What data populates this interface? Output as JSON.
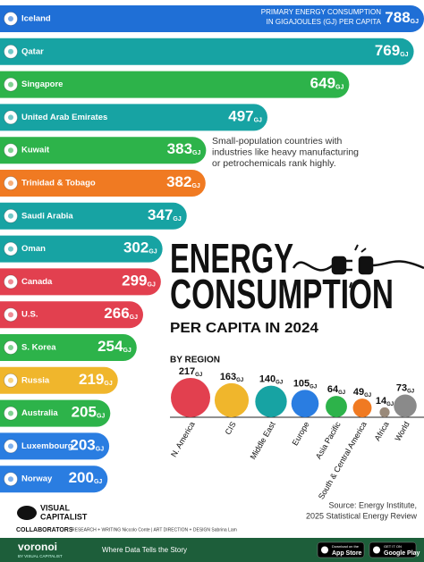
{
  "chart_data": [
    {
      "type": "bar",
      "title": [
        "ENERGY",
        "CONSUMPTION"
      ],
      "subtitle": "PER CAPITA IN 2024",
      "axis_label": [
        "PRIMARY ENERGY CONSUMPTION",
        "IN GIGAJOULES (GJ) PER CAPITA"
      ],
      "annotation": [
        "Small-population countries with",
        "industries like heavy manufacturing",
        "or petrochemicals rank highly."
      ],
      "unit": "GJ",
      "categories": [
        "Iceland",
        "Qatar",
        "Singapore",
        "United Arab Emirates",
        "Kuwait",
        "Trinidad & Tobago",
        "Saudi Arabia",
        "Oman",
        "Canada",
        "U.S.",
        "S. Korea",
        "Russia",
        "Australia",
        "Luxembourg",
        "Norway"
      ],
      "values": [
        788,
        769,
        649,
        497,
        383,
        382,
        347,
        302,
        299,
        266,
        254,
        219,
        205,
        203,
        200
      ],
      "colors": [
        "#1f6fd6",
        "#17a3a3",
        "#2db34a",
        "#17a3a3",
        "#2db34a",
        "#f07a22",
        "#17a3a3",
        "#17a3a3",
        "#e2404f",
        "#e2404f",
        "#2db34a",
        "#f0b62c",
        "#2db34a",
        "#2a7de1",
        "#2a7de1"
      ]
    },
    {
      "type": "bubble",
      "title": "BY REGION",
      "unit": "GJ",
      "categories": [
        "N. America",
        "CIS",
        "Middle East",
        "Europe",
        "Asia Pacific",
        "South & Central America",
        "Africa",
        "World"
      ],
      "values": [
        217,
        163,
        140,
        105,
        64,
        49,
        14,
        73
      ],
      "colors": [
        "#e2404f",
        "#f0b62c",
        "#17a3a3",
        "#2a7de1",
        "#2db34a",
        "#f07a22",
        "#9a8a7a",
        "#8a8a8a"
      ]
    }
  ],
  "footer": {
    "source": [
      "Source: Energy Institute,",
      "2025 Statistical Energy Review"
    ],
    "brand": [
      "VISUAL",
      "CAPITALIST"
    ],
    "collaborators": "COLLABORATORS",
    "credits": "RESEARCH + WRITING Niccolo Conte | ART DIRECTION + DESIGN Sabrina Lam",
    "voronoi": "voronoi",
    "voronoi_sub": "BY VISUAL CAPITALIST",
    "tagline": "Where Data Tells the Story",
    "appstore": [
      "Download on the",
      "App Store"
    ],
    "googleplay": [
      "GET IT ON",
      "Google Play"
    ]
  }
}
